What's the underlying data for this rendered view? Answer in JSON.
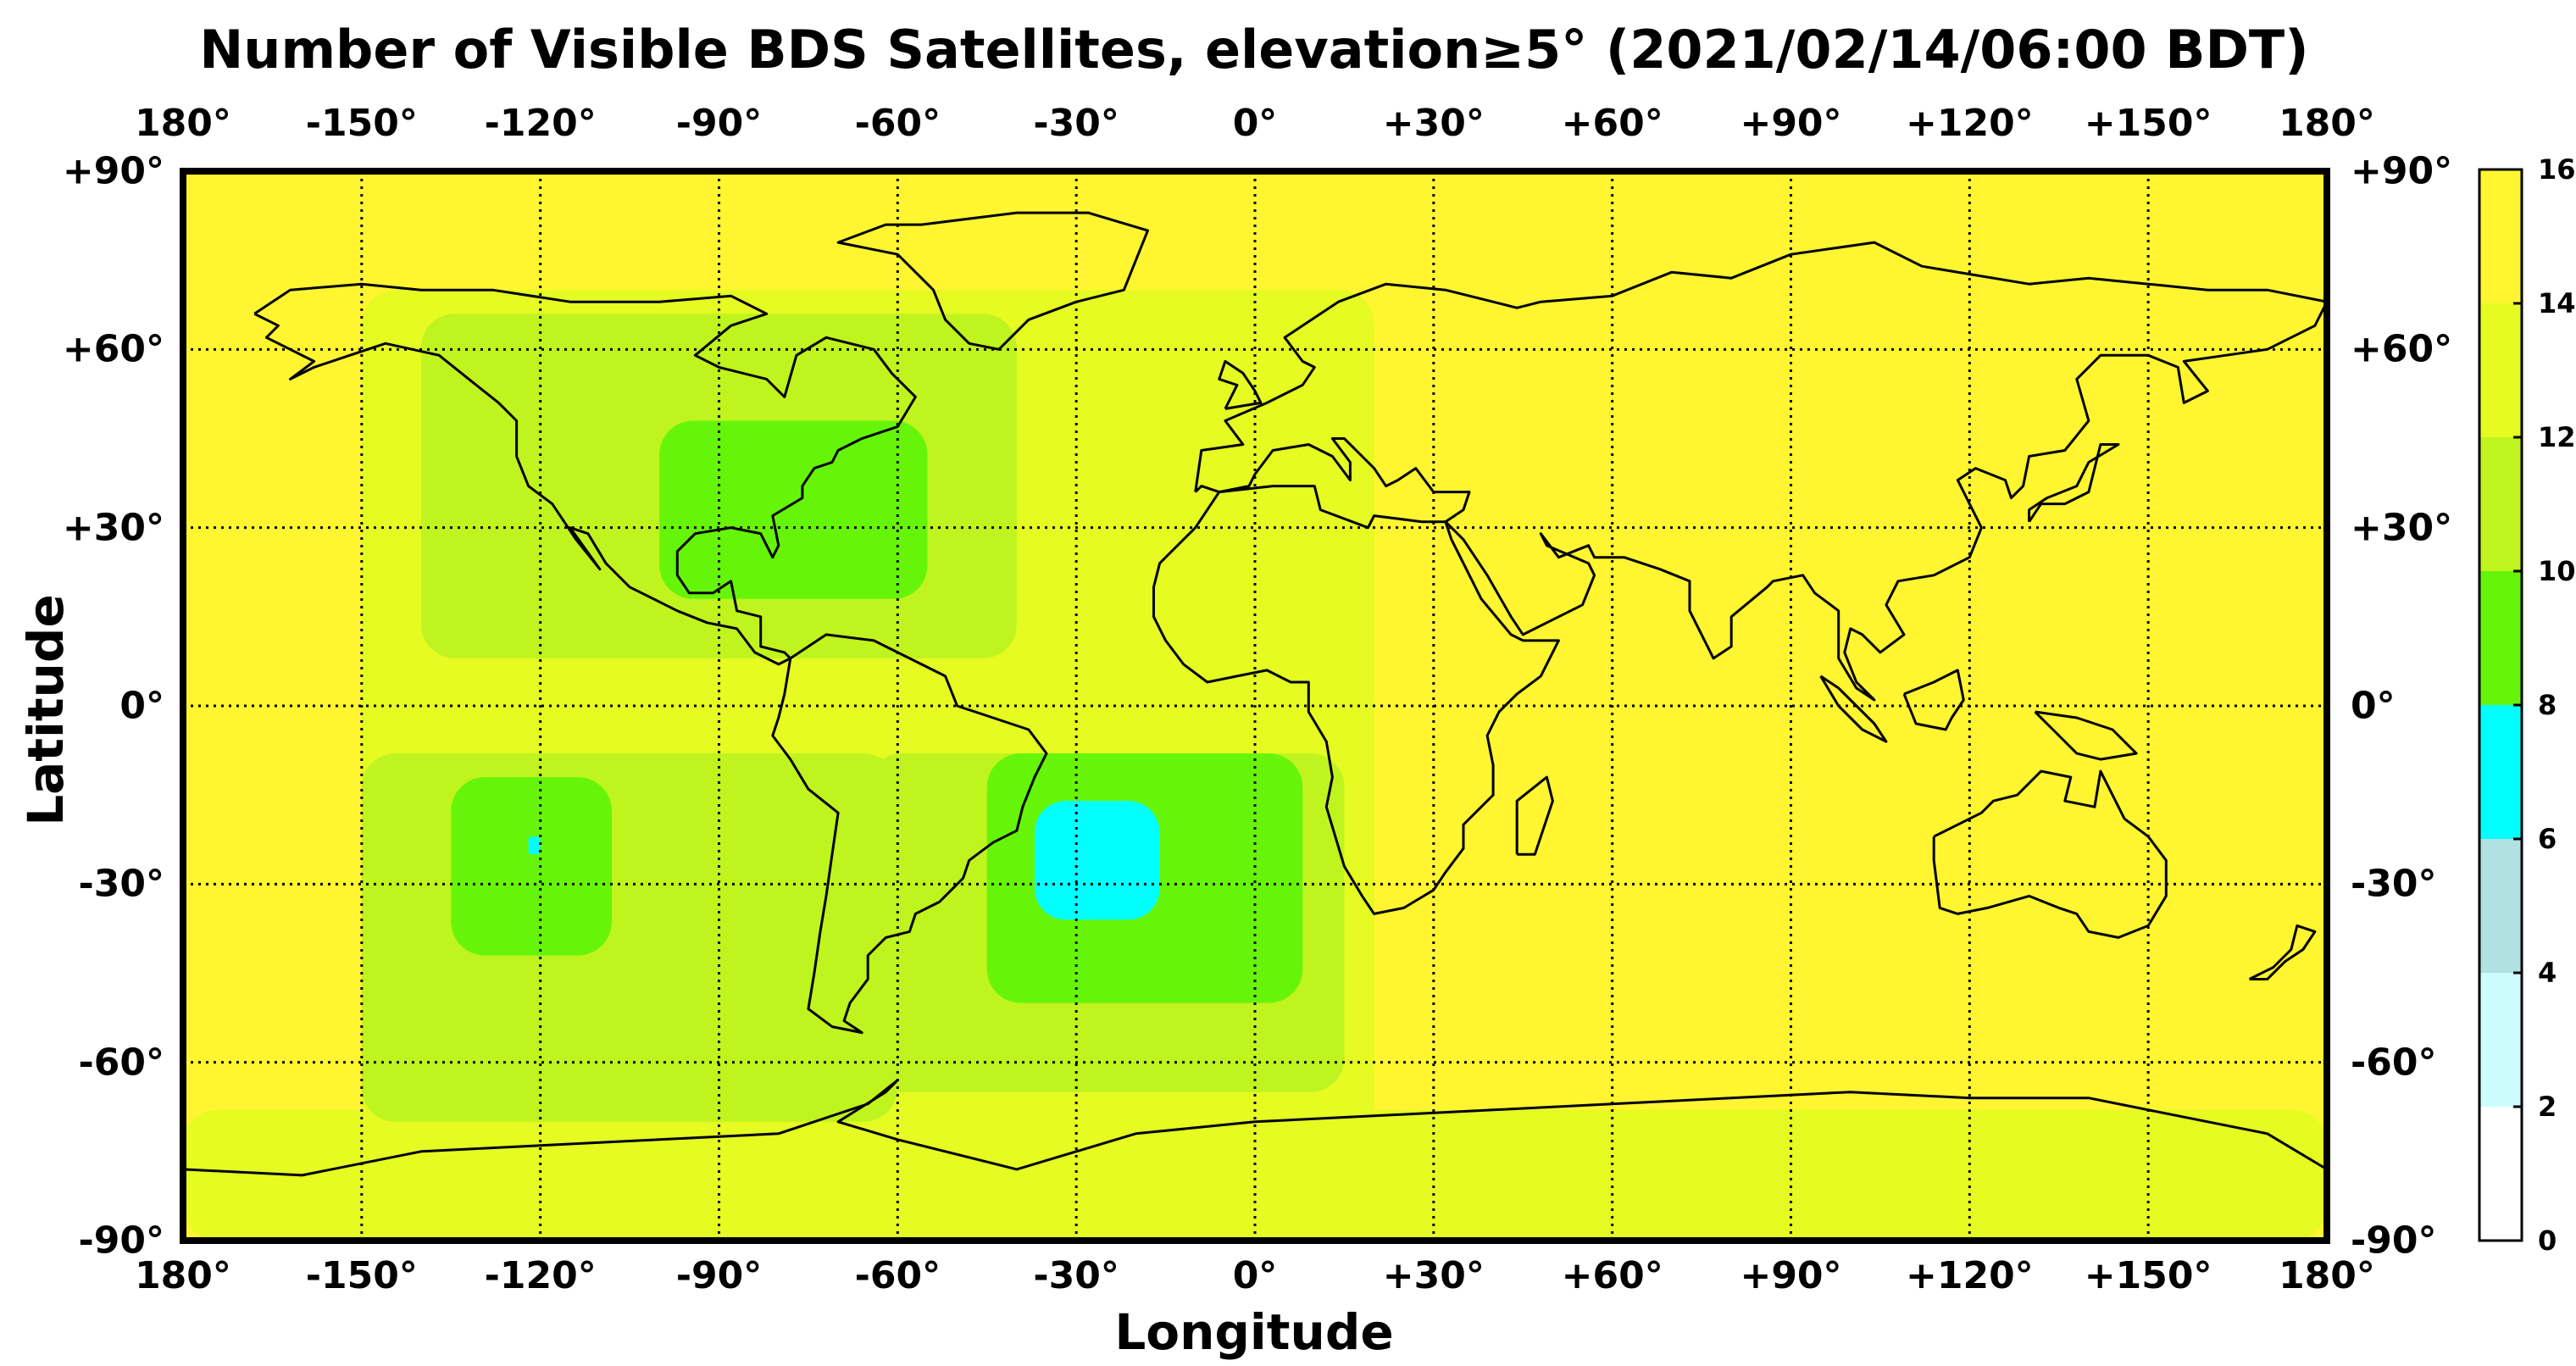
{
  "title": "Number of Visible BDS Satellites, elevation≥5° (2021/02/14/06:00 BDT)",
  "xlabel": "Longitude",
  "ylabel": "Latitude",
  "x_ticks": [
    {
      "v": -180,
      "label": "180°"
    },
    {
      "v": -150,
      "label": "-150°"
    },
    {
      "v": -120,
      "label": "-120°"
    },
    {
      "v": -90,
      "label": "-90°"
    },
    {
      "v": -60,
      "label": "-60°"
    },
    {
      "v": -30,
      "label": "-30°"
    },
    {
      "v": 0,
      "label": "0°"
    },
    {
      "v": 30,
      "label": "+30°"
    },
    {
      "v": 60,
      "label": "+60°"
    },
    {
      "v": 90,
      "label": "+90°"
    },
    {
      "v": 120,
      "label": "+120°"
    },
    {
      "v": 150,
      "label": "+150°"
    },
    {
      "v": 180,
      "label": "180°"
    }
  ],
  "y_ticks": [
    {
      "v": 90,
      "label": "+90°"
    },
    {
      "v": 60,
      "label": "+60°"
    },
    {
      "v": 30,
      "label": "+30°"
    },
    {
      "v": 0,
      "label": "0°"
    },
    {
      "v": -30,
      "label": "-30°"
    },
    {
      "v": -60,
      "label": "-60°"
    },
    {
      "v": -90,
      "label": "-90°"
    }
  ],
  "colorbar": {
    "min": 0,
    "max": 16,
    "tick_labels": [
      "0",
      "2",
      "4",
      "6",
      "8",
      "10",
      "12",
      "14",
      "16"
    ],
    "bands": [
      {
        "from": 0,
        "to": 2,
        "color": "#ffffff"
      },
      {
        "from": 2,
        "to": 4,
        "color": "#ccfcfc"
      },
      {
        "from": 4,
        "to": 6,
        "color": "#b0e2e2"
      },
      {
        "from": 6,
        "to": 8,
        "color": "#00ffff"
      },
      {
        "from": 8,
        "to": 10,
        "color": "#66f508"
      },
      {
        "from": 10,
        "to": 12,
        "color": "#bff41e"
      },
      {
        "from": 12,
        "to": 14,
        "color": "#e5fb22"
      },
      {
        "from": 14,
        "to": 16,
        "color": "#fff530"
      }
    ]
  },
  "chart_data": {
    "type": "heatmap",
    "title": "Number of Visible BDS Satellites, elevation≥5° (2021/02/14/06:00 BDT)",
    "xlabel": "Longitude",
    "ylabel": "Latitude",
    "xlim": [
      -180,
      180
    ],
    "ylim": [
      -90,
      90
    ],
    "grid": true,
    "background_count": 15,
    "regions": [
      {
        "name": "southern-ocean-belt",
        "count": 13,
        "lon": [
          -180,
          180
        ],
        "lat": [
          -90,
          -68
        ]
      },
      {
        "name": "east-pacific-atlantic",
        "count": 13,
        "lon": [
          -150,
          20
        ],
        "lat": [
          -75,
          70
        ]
      },
      {
        "name": "pacific-south",
        "count": 11,
        "lon": [
          -150,
          -60
        ],
        "lat": [
          -70,
          -8
        ]
      },
      {
        "name": "north-america",
        "count": 11,
        "lon": [
          -140,
          -40
        ],
        "lat": [
          8,
          66
        ]
      },
      {
        "name": "south-atlantic",
        "count": 11,
        "lon": [
          -65,
          15
        ],
        "lat": [
          -65,
          -8
        ]
      },
      {
        "name": "north-america-east",
        "count": 9,
        "lon": [
          -100,
          -55
        ],
        "lat": [
          18,
          48
        ]
      },
      {
        "name": "south-pacific",
        "count": 9,
        "lon": [
          -135,
          -108
        ],
        "lat": [
          -42,
          -12
        ]
      },
      {
        "name": "south-atlantic-core",
        "count": 9,
        "lon": [
          -45,
          8
        ],
        "lat": [
          -50,
          -8
        ]
      },
      {
        "name": "south-atlantic-min",
        "count": 7,
        "lon": [
          -37,
          -16
        ],
        "lat": [
          -36,
          -16
        ]
      },
      {
        "name": "south-pacific-spot",
        "count": 7,
        "lon": [
          -122,
          -120
        ],
        "lat": [
          -25,
          -22
        ]
      }
    ]
  }
}
